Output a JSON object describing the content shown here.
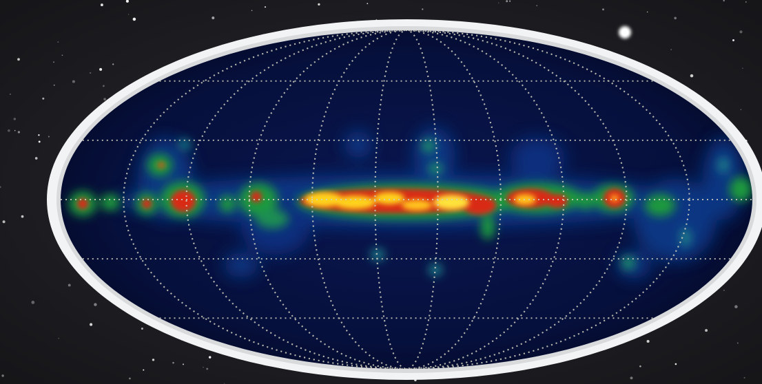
{
  "image": {
    "subject": "all-sky map",
    "projection": "mollweide",
    "colors": {
      "space_background": "#1b1b1f",
      "frame_border": "#f2f3f4",
      "map_background": "#05082e",
      "emission_low": "#1e9a3c",
      "emission_mid": "#d92a14",
      "emission_high": "#ffd21a",
      "grid_lines": "#d0d0c0"
    },
    "grid": {
      "style": "dotted",
      "meridian_count": 11,
      "parallel_count": 5
    }
  }
}
